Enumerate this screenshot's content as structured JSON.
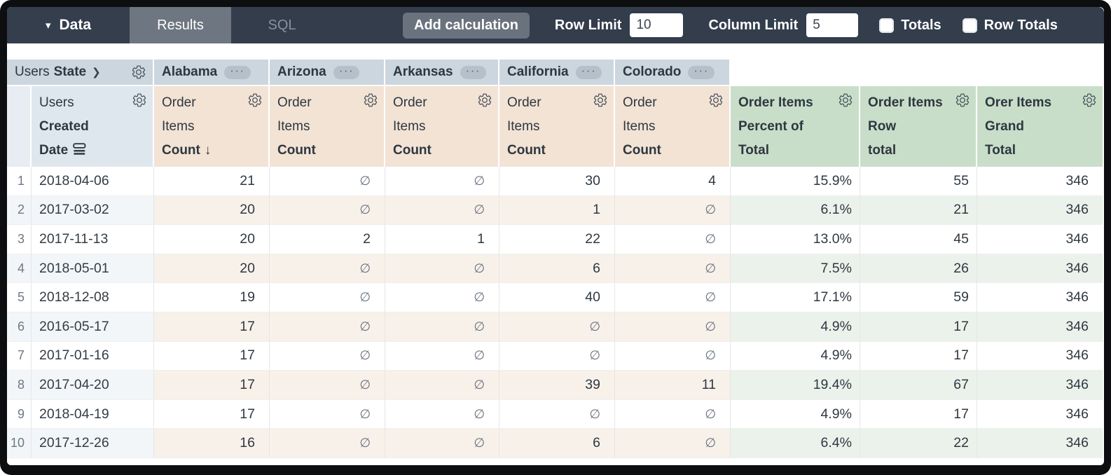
{
  "toolbar": {
    "data_label": "Data",
    "tabs": [
      {
        "label": "Results",
        "active": true
      },
      {
        "label": "SQL",
        "active": false
      }
    ],
    "add_calculation_label": "Add calculation",
    "row_limit_label": "Row Limit",
    "row_limit_value": "10",
    "column_limit_label": "Column Limit",
    "column_limit_value": "5",
    "totals_label": "Totals",
    "totals_checked": false,
    "row_totals_label": "Row Totals",
    "row_totals_checked": false
  },
  "icons": {
    "caret_down": "▾",
    "chevron_right": "❯",
    "more": "···",
    "sort_desc": "↓"
  },
  "table": {
    "pivot_field": {
      "view": "Users",
      "field": "State"
    },
    "pivot_values": [
      "Alabama",
      "Arizona",
      "Arkansas",
      "California",
      "Colorado"
    ],
    "dimension": {
      "view": "Users",
      "field_line1": "Created",
      "field_line2": "Date"
    },
    "measure": {
      "view_line1": "Order",
      "view_line2": "Items",
      "field": "Count",
      "sorted_desc_on_first_column": true
    },
    "calc_columns": [
      {
        "l1": "Order Items",
        "l2": "Percent of",
        "l3": "Total"
      },
      {
        "l1": "Order Items",
        "l2": "Row",
        "l3": "total"
      },
      {
        "l1": "Orer Items",
        "l2": "Grand",
        "l3": "Total"
      }
    ],
    "null_symbol": "∅",
    "rows": [
      {
        "n": "1",
        "date": "2018-04-06",
        "values": [
          "21",
          "∅",
          "∅",
          "30",
          "4"
        ],
        "pct": "15.9%",
        "row": "55",
        "grand": "346"
      },
      {
        "n": "2",
        "date": "2017-03-02",
        "values": [
          "20",
          "∅",
          "∅",
          "1",
          "∅"
        ],
        "pct": "6.1%",
        "row": "21",
        "grand": "346"
      },
      {
        "n": "3",
        "date": "2017-11-13",
        "values": [
          "20",
          "2",
          "1",
          "22",
          "∅"
        ],
        "pct": "13.0%",
        "row": "45",
        "grand": "346"
      },
      {
        "n": "4",
        "date": "2018-05-01",
        "values": [
          "20",
          "∅",
          "∅",
          "6",
          "∅"
        ],
        "pct": "7.5%",
        "row": "26",
        "grand": "346"
      },
      {
        "n": "5",
        "date": "2018-12-08",
        "values": [
          "19",
          "∅",
          "∅",
          "40",
          "∅"
        ],
        "pct": "17.1%",
        "row": "59",
        "grand": "346"
      },
      {
        "n": "6",
        "date": "2016-05-17",
        "values": [
          "17",
          "∅",
          "∅",
          "∅",
          "∅"
        ],
        "pct": "4.9%",
        "row": "17",
        "grand": "346"
      },
      {
        "n": "7",
        "date": "2017-01-16",
        "values": [
          "17",
          "∅",
          "∅",
          "∅",
          "∅"
        ],
        "pct": "4.9%",
        "row": "17",
        "grand": "346"
      },
      {
        "n": "8",
        "date": "2017-04-20",
        "values": [
          "17",
          "∅",
          "∅",
          "39",
          "11"
        ],
        "pct": "19.4%",
        "row": "67",
        "grand": "346"
      },
      {
        "n": "9",
        "date": "2018-04-19",
        "values": [
          "17",
          "∅",
          "∅",
          "∅",
          "∅"
        ],
        "pct": "4.9%",
        "row": "17",
        "grand": "346"
      },
      {
        "n": "10",
        "date": "2017-12-26",
        "values": [
          "16",
          "∅",
          "∅",
          "6",
          "∅"
        ],
        "pct": "6.4%",
        "row": "22",
        "grand": "346"
      }
    ]
  },
  "colors": {
    "topbar_bg": "#333d4c",
    "active_tab_bg": "#6e7681",
    "pivot_header_bg": "#ccd6de",
    "dimension_header_bg": "#dfe7ee",
    "measure_header_bg": "#f2e3d5",
    "calc_header_bg": "#c9dec9",
    "even_row_dim_tint": "#f3f6f9",
    "even_row_measure_tint": "#f8f1ea",
    "even_row_calc_tint": "#ebf2eb"
  }
}
